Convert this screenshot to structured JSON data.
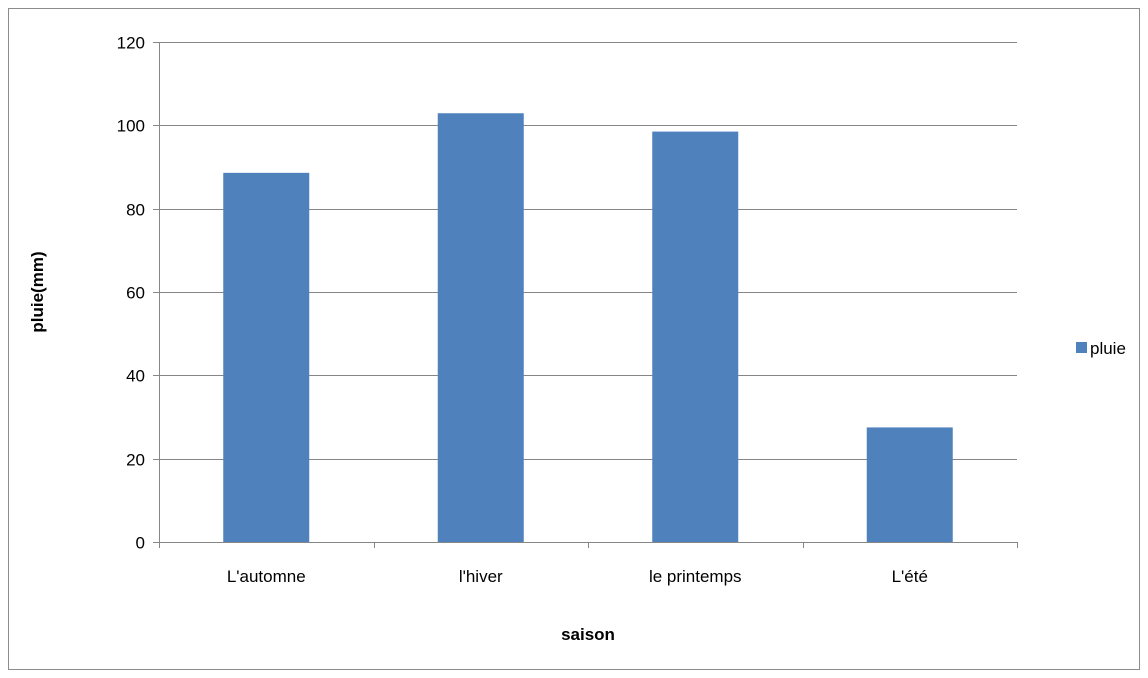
{
  "chart_data": {
    "type": "bar",
    "categories": [
      "L'automne",
      "l'hiver",
      "le printemps",
      "L'été"
    ],
    "series": [
      {
        "name": "pluie",
        "values": [
          88.6,
          102.9,
          98.5,
          27.5
        ],
        "color": "#4f81bd"
      }
    ],
    "xlabel": "saison",
    "ylabel": "pluie(mm)",
    "ylim": [
      0,
      120
    ],
    "yticks": [
      0,
      20,
      40,
      60,
      80,
      100,
      120
    ],
    "grid": true,
    "legend_position": "right"
  }
}
